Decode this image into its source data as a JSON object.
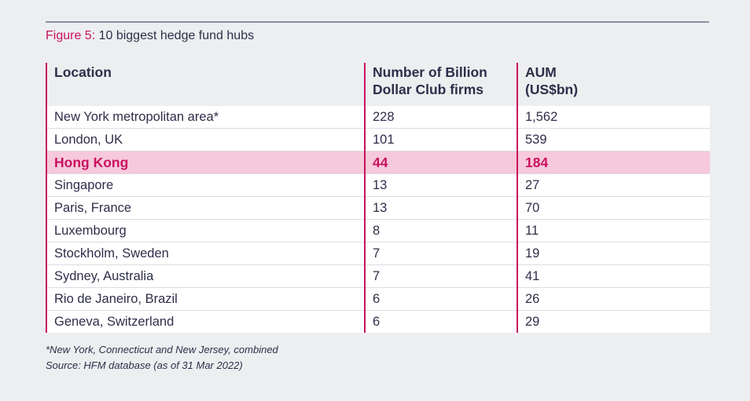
{
  "figure": {
    "label": "Figure 5:",
    "title": " 10 biggest hedge fund hubs"
  },
  "colors": {
    "accent": "#c8115f",
    "highlight_row_bg": "#f6c9db",
    "page_bg": "#edeef0",
    "text": "#2e2e4a"
  },
  "chart_data": {
    "type": "table",
    "title": "10 biggest hedge fund hubs",
    "columns": [
      "Location",
      "Number of Billion Dollar Club firms",
      "AUM (US$bn)"
    ],
    "rows": [
      {
        "location": "New York metropolitan area*",
        "firms": "228",
        "aum": "1,562"
      },
      {
        "location": "London, UK",
        "firms": "101",
        "aum": "539"
      },
      {
        "location": "Hong Kong",
        "firms": "44",
        "aum": "184",
        "highlighted": true
      },
      {
        "location": "Singapore",
        "firms": "13",
        "aum": "27"
      },
      {
        "location": "Paris, France",
        "firms": "13",
        "aum": "70"
      },
      {
        "location": "Luxembourg",
        "firms": "8",
        "aum": "11"
      },
      {
        "location": "Stockholm, Sweden",
        "firms": "7",
        "aum": "19"
      },
      {
        "location": "Sydney, Australia",
        "firms": "7",
        "aum": "41"
      },
      {
        "location": "Rio de Janeiro, Brazil",
        "firms": "6",
        "aum": "26"
      },
      {
        "location": "Geneva, Switzerland",
        "firms": "6",
        "aum": "29"
      }
    ]
  },
  "header": {
    "col1": "Location",
    "col2_line1": "Number of Billion",
    "col2_line2": "Dollar Club firms",
    "col3_line1": "AUM",
    "col3_line2": "(US$bn)"
  },
  "notes": {
    "footnote": "*New York, Connecticut and New Jersey, combined",
    "source": "Source: HFM database (as of 31 Mar 2022)"
  }
}
